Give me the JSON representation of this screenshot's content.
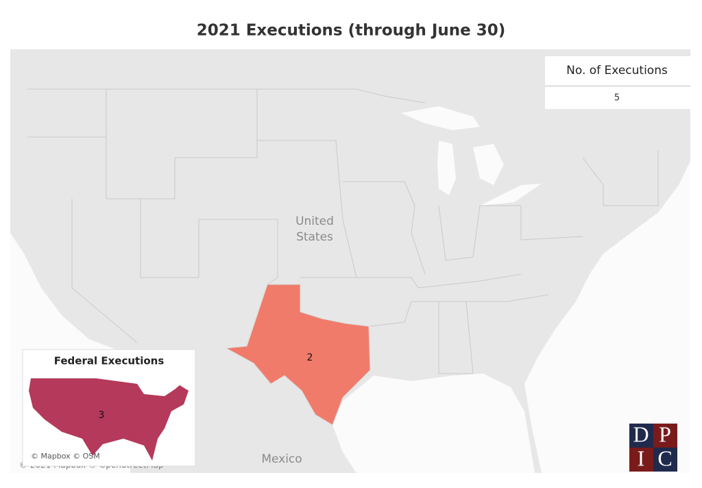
{
  "title": "2021 Executions (through June 30)",
  "legend": {
    "title": "No. of Executions",
    "value": 5
  },
  "map": {
    "country_label": [
      "United",
      "States"
    ],
    "neighbor_label": "Mexico",
    "state_value": 2
  },
  "inset": {
    "title": "Federal Executions",
    "value": 3,
    "attribution": "© Mapbox © OSM"
  },
  "attribution": "© 2021 Mapbox © OpenStreetMap",
  "logo": {
    "letters": [
      "D",
      "P",
      "I",
      "C"
    ]
  }
}
